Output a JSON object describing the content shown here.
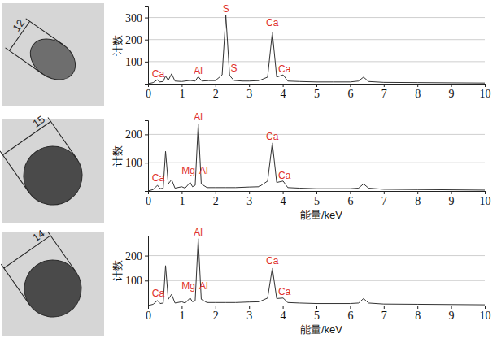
{
  "chart_data": [
    {
      "type": "line",
      "image_annotation": "12",
      "ylabel": "计数",
      "xlim": [
        0,
        10
      ],
      "xticks": [
        0,
        1,
        2,
        3,
        4,
        5,
        6,
        7,
        8,
        9,
        10
      ],
      "ylim": [
        0,
        350
      ],
      "yticks": [
        100,
        200,
        300
      ],
      "grid": true,
      "x": [
        0,
        0.15,
        0.28,
        0.34,
        0.45,
        0.52,
        0.6,
        0.7,
        0.8,
        1.0,
        1.25,
        1.4,
        1.49,
        1.6,
        1.8,
        2.0,
        2.2,
        2.31,
        2.42,
        2.46,
        2.55,
        2.8,
        3.0,
        3.3,
        3.55,
        3.69,
        3.82,
        4.01,
        4.15,
        4.5,
        5.0,
        5.5,
        6.0,
        6.25,
        6.4,
        6.55,
        7,
        8,
        9,
        10
      ],
      "series": [
        {
          "color": "#333333",
          "values": [
            0,
            5,
            18,
            8,
            10,
            35,
            15,
            45,
            12,
            10,
            15,
            12,
            32,
            12,
            14,
            14,
            40,
            310,
            40,
            30,
            15,
            12,
            12,
            14,
            30,
            232,
            30,
            40,
            12,
            10,
            8,
            8,
            8,
            12,
            30,
            10,
            6,
            5,
            4,
            3
          ]
        }
      ],
      "annotations": [
        {
          "text": "Ca",
          "x": 0.3,
          "y": 30
        },
        {
          "text": "Al",
          "x": 1.49,
          "y": 45
        },
        {
          "text": "S",
          "x": 2.31,
          "y": 325
        },
        {
          "text": "S",
          "x": 2.55,
          "y": 55
        },
        {
          "text": "Ca",
          "x": 3.69,
          "y": 262
        },
        {
          "text": "Ca",
          "x": 4.05,
          "y": 50
        }
      ]
    },
    {
      "type": "line",
      "image_annotation": "15",
      "ylabel": "计数",
      "xlabel": "能量/keV",
      "xlim": [
        0,
        10
      ],
      "xticks": [
        0,
        1,
        2,
        3,
        4,
        5,
        6,
        7,
        8,
        9,
        10
      ],
      "ylim": [
        0,
        250
      ],
      "yticks": [
        100,
        200
      ],
      "grid": true,
      "x": [
        0,
        0.15,
        0.28,
        0.36,
        0.45,
        0.52,
        0.6,
        0.7,
        0.8,
        1.0,
        1.1,
        1.25,
        1.32,
        1.4,
        1.49,
        1.58,
        1.75,
        2.0,
        2.3,
        2.6,
        3.0,
        3.3,
        3.55,
        3.69,
        3.82,
        4.01,
        4.15,
        4.5,
        5,
        6.0,
        6.25,
        6.4,
        6.55,
        7,
        8,
        9,
        10
      ],
      "series": [
        {
          "color": "#333333",
          "values": [
            0,
            5,
            20,
            8,
            10,
            140,
            25,
            40,
            10,
            15,
            10,
            30,
            15,
            20,
            238,
            25,
            12,
            12,
            12,
            12,
            14,
            15,
            35,
            170,
            30,
            35,
            12,
            10,
            8,
            8,
            10,
            25,
            10,
            6,
            5,
            4,
            3
          ]
        }
      ],
      "annotations": [
        {
          "text": "Ca",
          "x": 0.3,
          "y": 35
        },
        {
          "text": "Mg",
          "x": 1.2,
          "y": 60
        },
        {
          "text": "Al",
          "x": 1.65,
          "y": 60
        },
        {
          "text": "Al",
          "x": 1.49,
          "y": 250
        },
        {
          "text": "Ca",
          "x": 3.69,
          "y": 182
        },
        {
          "text": "Ca",
          "x": 4.05,
          "y": 42
        }
      ]
    },
    {
      "type": "line",
      "image_annotation": "14",
      "ylabel": "计数",
      "xlabel": "能量/keV",
      "xlim": [
        0,
        10
      ],
      "xticks": [
        0,
        1,
        2,
        3,
        4,
        5,
        6,
        7,
        8,
        9,
        10
      ],
      "ylim": [
        0,
        280
      ],
      "yticks": [
        100,
        200
      ],
      "grid": true,
      "x": [
        0,
        0.15,
        0.28,
        0.36,
        0.45,
        0.52,
        0.6,
        0.7,
        0.8,
        1.0,
        1.1,
        1.25,
        1.32,
        1.4,
        1.49,
        1.58,
        1.75,
        2.0,
        2.3,
        2.6,
        3.0,
        3.3,
        3.55,
        3.69,
        3.82,
        4.01,
        4.15,
        4.5,
        5,
        6.0,
        6.25,
        6.4,
        6.55,
        7,
        8,
        9,
        10
      ],
      "series": [
        {
          "color": "#333333",
          "values": [
            0,
            5,
            20,
            8,
            10,
            160,
            25,
            45,
            10,
            15,
            10,
            30,
            15,
            20,
            268,
            25,
            12,
            12,
            12,
            12,
            14,
            15,
            30,
            150,
            28,
            30,
            12,
            10,
            8,
            8,
            10,
            28,
            10,
            6,
            5,
            4,
            3
          ]
        }
      ],
      "annotations": [
        {
          "text": "Ca",
          "x": 0.3,
          "y": 35
        },
        {
          "text": "Mg",
          "x": 1.2,
          "y": 65
        },
        {
          "text": "Al",
          "x": 1.65,
          "y": 65
        },
        {
          "text": "Al",
          "x": 1.49,
          "y": 280
        },
        {
          "text": "Ca",
          "x": 3.69,
          "y": 165
        },
        {
          "text": "Ca",
          "x": 4.05,
          "y": 42
        }
      ]
    }
  ]
}
